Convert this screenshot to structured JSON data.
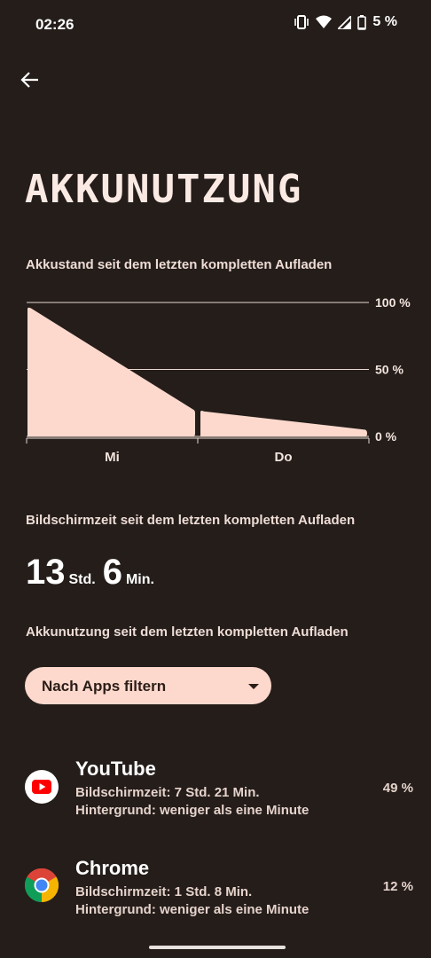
{
  "status": {
    "time": "02:26",
    "battery_text": "5 %",
    "icons": [
      "vibrate-icon",
      "wifi-icon",
      "signal-icon",
      "battery-icon"
    ]
  },
  "header": {
    "back_icon": "arrow-left-icon",
    "title": "AKKUNUTZUNG"
  },
  "battery_chart_label": "Akkustand seit dem letzten kompletten Aufladen",
  "chart_data": {
    "type": "area",
    "categories": [
      "Mi",
      "Do"
    ],
    "y_ticks": [
      "100 %",
      "50 %",
      "0 %"
    ],
    "ylim": [
      0,
      100
    ],
    "series": [
      {
        "segment": "Mi",
        "values": [
          97,
          20
        ]
      },
      {
        "segment": "Do",
        "values": [
          20,
          5
        ]
      }
    ],
    "grid": true,
    "color": "#fdd9cd"
  },
  "screen_time": {
    "label": "Bildschirmzeit seit dem letzten kompletten Aufladen",
    "hours": "13",
    "hours_unit": "Std.",
    "minutes": "6",
    "minutes_unit": "Min."
  },
  "usage": {
    "label": "Akkunutzung seit dem letzten kompletten Aufladen",
    "filter_label": "Nach Apps filtern"
  },
  "apps": [
    {
      "name": "YouTube",
      "icon": "youtube-icon",
      "screen_time": "Bildschirmzeit: 7 Std. 21 Min.",
      "background": "Hintergrund: weniger als eine Minute",
      "percent": "49 %"
    },
    {
      "name": "Chrome",
      "icon": "chrome-icon",
      "screen_time": "Bildschirmzeit: 1 Std. 8 Min.",
      "background": "Hintergrund: weniger als eine Minute",
      "percent": "12 %"
    }
  ],
  "colors": {
    "background": "#241d1a",
    "accent": "#fdd9cd",
    "youtube_red": "#ff0000"
  }
}
